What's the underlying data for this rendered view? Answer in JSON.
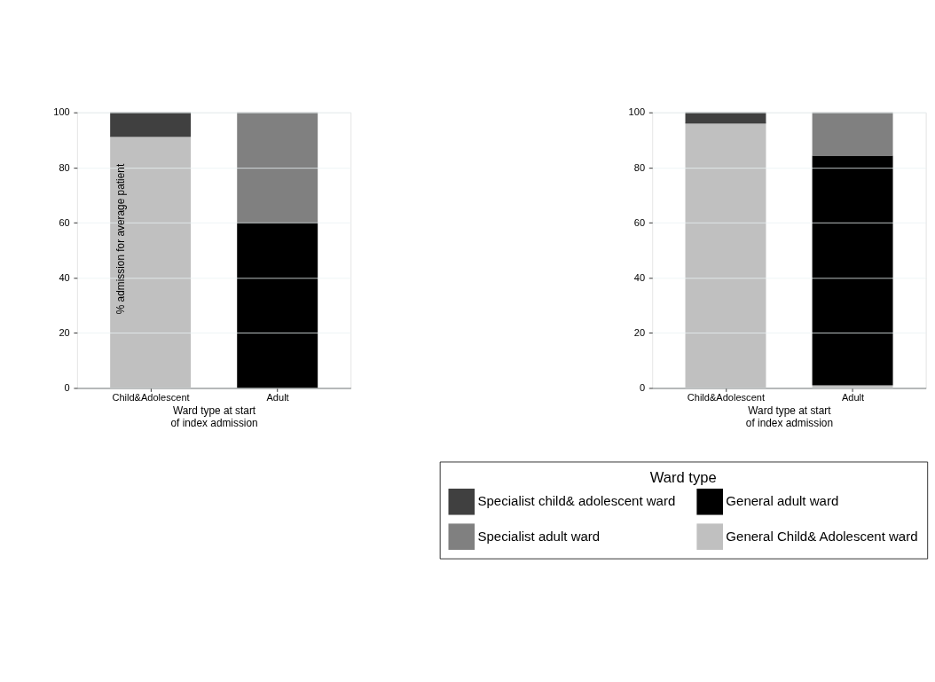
{
  "chart_data": [
    {
      "type": "bar",
      "stacked": true,
      "ylabel": "% admission for average patient",
      "xlabel": "Ward type at start\nof index admission",
      "grid": "y",
      "categories": [
        "Child&Adolescent",
        "Adult"
      ],
      "ylim": [
        0,
        100
      ],
      "yticks": [
        0,
        20,
        40,
        60,
        80,
        100
      ],
      "series": [
        {
          "color": "#c0c0c0",
          "values": [
            91.2,
            0
          ]
        },
        {
          "color": "#000000",
          "values": [
            0.3,
            60
          ]
        },
        {
          "color": "#808080",
          "values": [
            0,
            40
          ]
        },
        {
          "color": "#404040",
          "values": [
            8.5,
            0
          ]
        }
      ]
    },
    {
      "type": "bar",
      "stacked": true,
      "xlabel": "Ward type at start\nof index admission",
      "legend_title": "Ward type",
      "legend": "bottom",
      "grid": "y",
      "categories": [
        "Child&Adolescent",
        "Adult"
      ],
      "ylim": [
        0,
        100
      ],
      "yticks": [
        0,
        20,
        40,
        60,
        80,
        100
      ],
      "series": [
        {
          "name": "General Child& Adolescent ward",
          "color": "#c0c0c0",
          "values": [
            96.0,
            1.0
          ]
        },
        {
          "name": "General adult ward",
          "color": "#000000",
          "values": [
            0.3,
            83.3
          ]
        },
        {
          "name": "Specialist adult ward",
          "color": "#808080",
          "values": [
            0,
            15.7
          ]
        },
        {
          "name": "Specialist child& adolescent ward",
          "color": "#404040",
          "values": [
            3.7,
            0
          ]
        }
      ]
    }
  ]
}
